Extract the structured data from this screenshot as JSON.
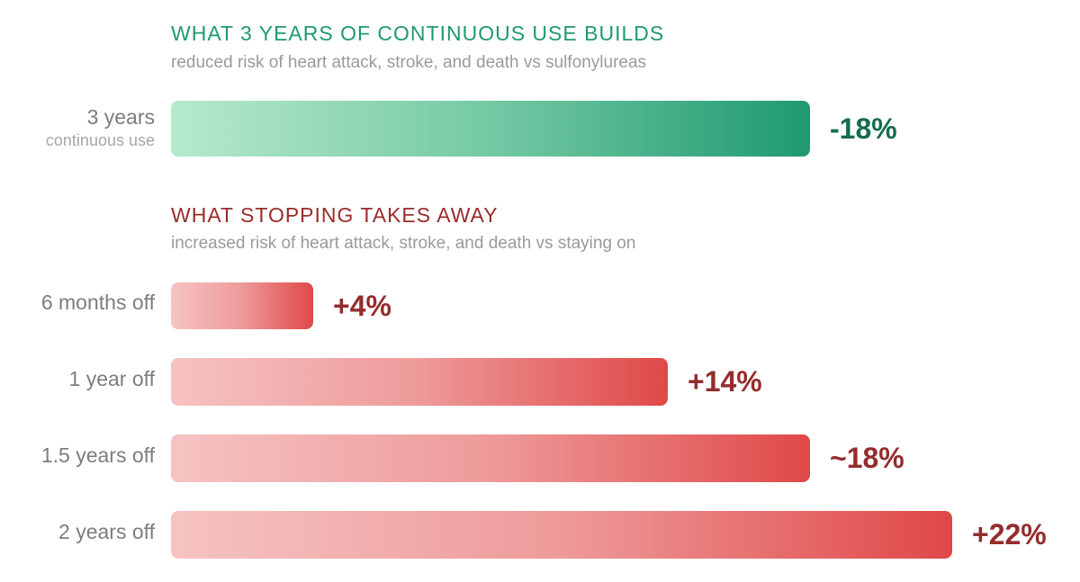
{
  "colors": {
    "green_accent": "#1f9a6f",
    "green_value": "#176b50",
    "red_accent": "#9b2b2b",
    "red_value": "#952c2c"
  },
  "chart_data": [
    {
      "type": "bar",
      "orientation": "horizontal",
      "title": "WHAT 3 YEARS OF CONTINUOUS USE BUILDS",
      "subtitle": "reduced risk of heart attack, stroke, and death vs sulfonylureas",
      "categories": [
        {
          "label": "3 years",
          "sublabel": "continuous use"
        }
      ],
      "values": [
        -18
      ],
      "value_labels": [
        "-18%"
      ],
      "scale_max": 22
    },
    {
      "type": "bar",
      "orientation": "horizontal",
      "title": "WHAT STOPPING TAKES AWAY",
      "subtitle": "increased risk of heart attack, stroke, and death vs staying on",
      "categories": [
        {
          "label": "6 months off"
        },
        {
          "label": "1 year off"
        },
        {
          "label": "1.5 years off"
        },
        {
          "label": "2 years off"
        }
      ],
      "values": [
        4,
        14,
        18,
        22
      ],
      "value_labels": [
        "+4%",
        "+14%",
        "~18%",
        "+22%"
      ],
      "scale_max": 22
    }
  ]
}
